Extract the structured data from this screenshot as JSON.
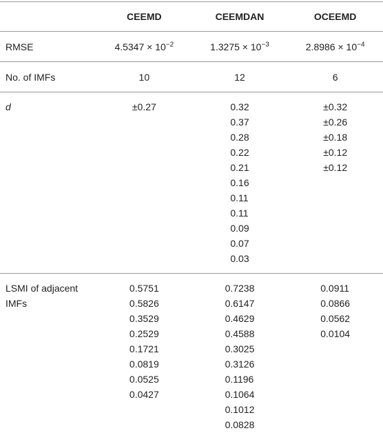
{
  "table": {
    "columns": [
      "CEEMD",
      "CEEMDAN",
      "OCEEMD"
    ],
    "rows": [
      {
        "label": "RMSE",
        "cells": [
          {
            "base": "4.5347 × 10",
            "exp": "−2"
          },
          {
            "base": "1.3275 × 10",
            "exp": "−3"
          },
          {
            "base": "2.8986 × 10",
            "exp": "−4"
          }
        ]
      },
      {
        "label": "No. of IMFs",
        "cells": [
          "10",
          "12",
          "6"
        ]
      },
      {
        "label": "d",
        "cells": [
          [
            "±0.27"
          ],
          [
            "0.32",
            "0.37",
            "0.28",
            "0.22",
            "0.21",
            "0.16",
            "0.11",
            "0.11",
            "0.09",
            "0.07",
            "0.03"
          ],
          [
            "±0.32",
            "±0.26",
            "±0.18",
            "±0.12",
            "±0.12"
          ]
        ]
      },
      {
        "label": "LSMI of adjacent IMFs",
        "cells": [
          [
            "0.5751",
            "0.5826",
            "0.3529",
            "0.2529",
            "0.1721",
            "0.0819",
            "0.0525",
            "0.0427"
          ],
          [
            "0.7238",
            "0.6147",
            "0.4629",
            "0.4588",
            "0.3025",
            "0.3126",
            "0.1196",
            "0.1064",
            "0.1012",
            "0.0828"
          ],
          [
            "0.0911",
            "0.0866",
            "0.0562",
            "0.0104"
          ]
        ]
      }
    ]
  }
}
